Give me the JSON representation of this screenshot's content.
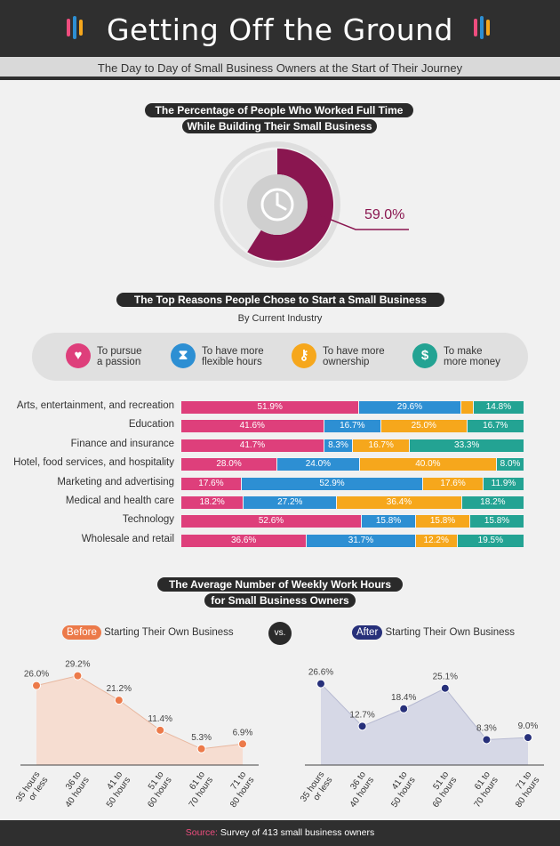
{
  "header": {
    "title": "Getting Off the Ground",
    "subtitle": "The Day to Day of Small Business Owners at the Start of Their Journey"
  },
  "section1": {
    "title_line1": "The Percentage of People Who Worked Full Time",
    "title_line2": "While Building Their Small Business",
    "value_label": "59.0%",
    "icon": "clock-icon"
  },
  "section2": {
    "title": "The Top Reasons People Chose to Start a Small Business",
    "subtitle": "By Current Industry",
    "legend": [
      {
        "line1": "To pursue",
        "line2": "a passion",
        "icon": "heart-icon",
        "color": "#de3f7b",
        "glyph": "♥"
      },
      {
        "line1": "To have more",
        "line2": "flexible hours",
        "icon": "hourglass-icon",
        "color": "#2d8fd3",
        "glyph": "⧗"
      },
      {
        "line1": "To have more",
        "line2": "ownership",
        "icon": "key-icon",
        "color": "#f6a71c",
        "glyph": "⚷"
      },
      {
        "line1": "To make",
        "line2": "more money",
        "icon": "dollar-icon",
        "color": "#23a393",
        "glyph": "$"
      }
    ]
  },
  "section3": {
    "title_line1": "The Average Number of Weekly Work Hours",
    "title_line2": "for Small Business Owners",
    "before_badge": "Before",
    "before_text": "Starting Their Own Business",
    "vs": "vs.",
    "after_badge": "After",
    "after_text": "Starting Their Own Business"
  },
  "footer": {
    "source_label": "Source:",
    "source_text": "Survey of 413 small business owners"
  },
  "colors": {
    "passion": "#de3f7b",
    "flexible": "#2d8fd3",
    "ownership": "#f6a71c",
    "money": "#23a393",
    "before": "#ec7a4a",
    "after": "#27307a",
    "donut": "#8a1650"
  },
  "chart_data": [
    {
      "type": "pie",
      "title": "The Percentage of People Who Worked Full Time While Building Their Small Business",
      "values": [
        59.0
      ],
      "labels": [
        "59.0%"
      ]
    },
    {
      "type": "bar",
      "orientation": "horizontal",
      "stacked": true,
      "title": "The Top Reasons People Chose to Start a Small Business",
      "subtitle": "By Current Industry",
      "categories": [
        "Arts, entertainment, and recreation",
        "Education",
        "Finance and insurance",
        "Hotel, food services, and hospitality",
        "Marketing and advertising",
        "Medical and health care",
        "Technology",
        "Wholesale and retail"
      ],
      "series": [
        {
          "name": "To pursue a passion",
          "values": [
            51.9,
            41.6,
            41.7,
            28.0,
            17.6,
            18.2,
            52.6,
            36.6
          ],
          "labels": [
            "51.9%",
            "41.6%",
            "41.7%",
            "28.0%",
            "17.6%",
            "18.2%",
            "52.6%",
            "36.6%"
          ]
        },
        {
          "name": "To have more flexible hours",
          "values": [
            29.6,
            16.7,
            8.3,
            24.0,
            52.9,
            27.2,
            15.8,
            31.7
          ],
          "labels": [
            "29.6%",
            "16.7%",
            "8.3%",
            "24.0%",
            "52.9%",
            "27.2%",
            "15.8%",
            "31.7%"
          ]
        },
        {
          "name": "To have more ownership",
          "values": [
            3.7,
            25.0,
            16.7,
            40.0,
            17.6,
            36.4,
            15.8,
            12.2
          ],
          "labels": [
            "",
            "25.0%",
            "16.7%",
            "40.0%",
            "17.6%",
            "36.4%",
            "15.8%",
            "12.2%"
          ]
        },
        {
          "name": "To make more money",
          "values": [
            14.8,
            16.7,
            33.3,
            8.0,
            11.9,
            18.2,
            15.8,
            19.5
          ],
          "labels": [
            "14.8%",
            "16.7%",
            "33.3%",
            "8.0%",
            "11.9%",
            "18.2%",
            "15.8%",
            "19.5%"
          ]
        }
      ]
    },
    {
      "type": "area",
      "title": "Before Starting Their Own Business",
      "categories": [
        "35 hours or less",
        "36 to 40 hours",
        "41 to 50 hours",
        "51 to 60 hours",
        "61 to 70 hours",
        "71 to 80 hours"
      ],
      "values": [
        26.0,
        29.2,
        21.2,
        11.4,
        5.3,
        6.9
      ],
      "labels": [
        "26.0%",
        "29.2%",
        "21.2%",
        "11.4%",
        "5.3%",
        "6.9%"
      ]
    },
    {
      "type": "area",
      "title": "After Starting Their Own Business",
      "categories": [
        "35 hours or less",
        "36 to 40 hours",
        "41 to 50 hours",
        "51 to 60 hours",
        "61 to 70 hours",
        "71 to 80 hours"
      ],
      "values": [
        26.6,
        12.7,
        18.4,
        25.1,
        8.3,
        9.0
      ],
      "labels": [
        "26.6%",
        "12.7%",
        "18.4%",
        "25.1%",
        "8.3%",
        "9.0%"
      ]
    }
  ]
}
